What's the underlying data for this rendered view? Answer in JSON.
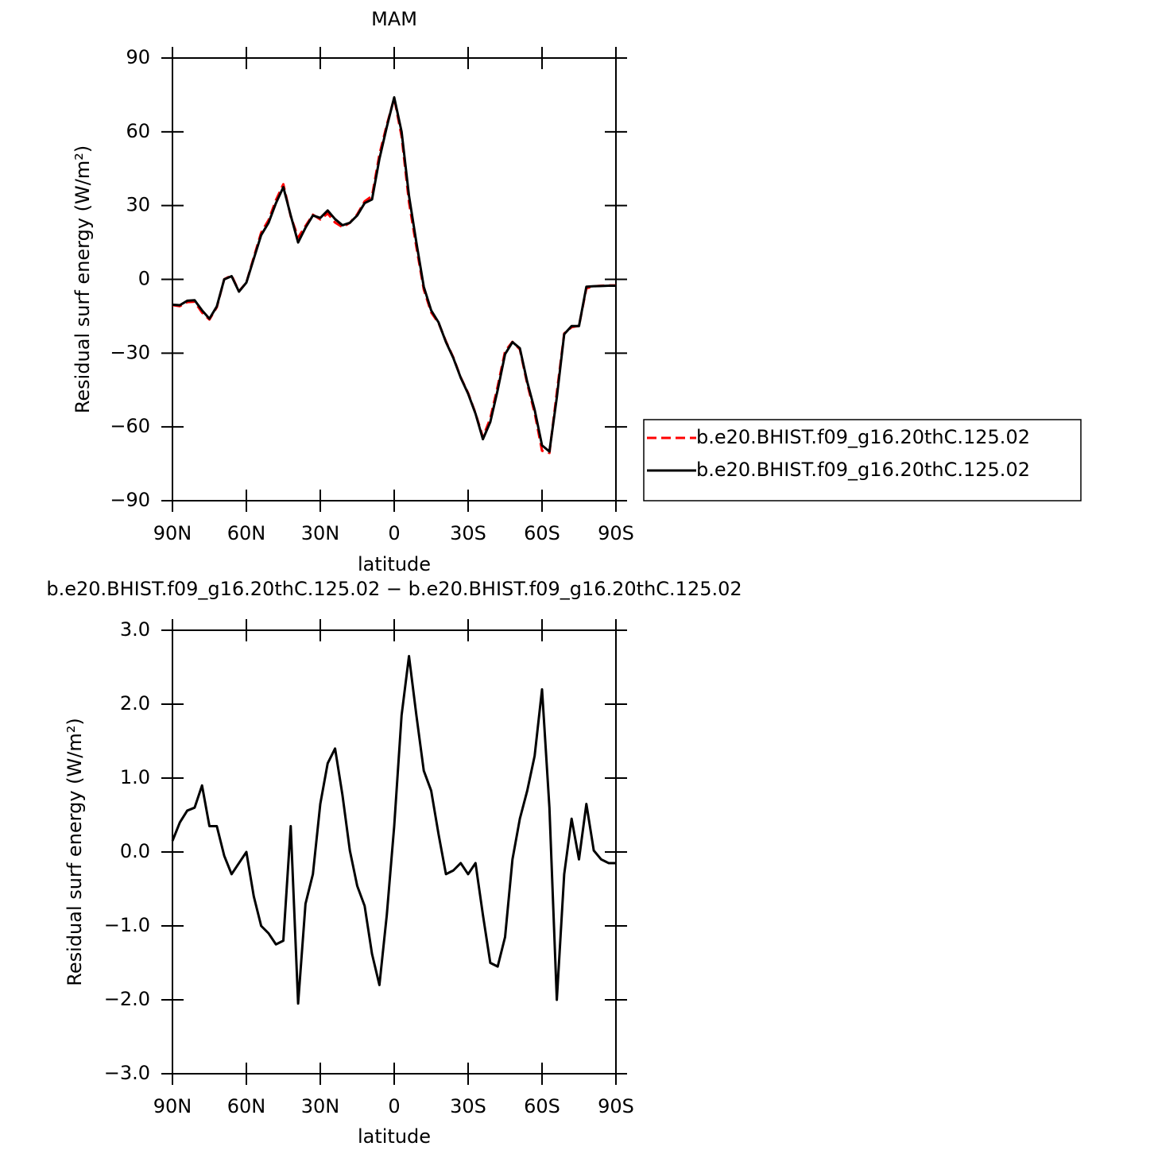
{
  "chart_data": [
    {
      "type": "line",
      "title": "MAM",
      "xlabel": "latitude",
      "ylabel": "Residual surf energy (W/m²)",
      "x": [
        90,
        87,
        84,
        81,
        78,
        75,
        72,
        69,
        66,
        63,
        60,
        57,
        54,
        51,
        48,
        45,
        42,
        39,
        36,
        33,
        30,
        27,
        24,
        21,
        18,
        15,
        12,
        9,
        6,
        3,
        0,
        -3,
        -6,
        -9,
        -12,
        -15,
        -18,
        -21,
        -24,
        -27,
        -30,
        -33,
        -36,
        -39,
        -42,
        -45,
        -48,
        -51,
        -54,
        -57,
        -60,
        -63,
        -66,
        -69,
        -72,
        -75,
        -78,
        -81,
        -84,
        -87,
        -90
      ],
      "series": [
        {
          "name": "b.e20.BHIST.f09_g16.20thC.125.02",
          "color": "#ff0000",
          "style": "dashed",
          "values": [
            -10.45,
            -10.9,
            -9.26,
            -9.1,
            -13.5,
            -16.35,
            -11.35,
            0.05,
            1.6,
            -4.85,
            -1.3,
            9.0,
            19.0,
            24.1,
            32.25,
            38.7,
            25.65,
            17.05,
            21.7,
            26.3,
            24.35,
            26.8,
            23.1,
            21.23,
            22.98,
            26.46,
            31.73,
            33.88,
            50.8,
            62.85,
            73.65,
            58.15,
            31.35,
            13.15,
            -4.1,
            -13.43,
            -17.74,
            -25.2,
            -31.75,
            -39.85,
            -46.2,
            -54.45,
            -64.15,
            -56.5,
            -43.45,
            -29.25,
            -25.4,
            -28.45,
            -42.53,
            -54.3,
            -69.7,
            -70.6,
            -46,
            -22,
            -19.45,
            -18.9,
            -3.65,
            -2.82,
            -2.6,
            -2.45,
            -2.45
          ]
        },
        {
          "name": "b.e20.BHIST.f09_g16.20thC.125.02",
          "color": "#000000",
          "style": "solid",
          "values": [
            -10.3,
            -10.5,
            -8.7,
            -8.5,
            -12.6,
            -16,
            -11,
            0,
            1.3,
            -5,
            -1.3,
            8.4,
            18,
            23,
            31,
            37.5,
            26,
            15,
            21,
            26,
            25,
            28,
            24.5,
            22,
            23,
            26,
            31,
            32.5,
            49,
            62,
            74,
            60,
            34,
            15,
            -3,
            -12.6,
            -17.5,
            -25.5,
            -32,
            -40,
            -46.5,
            -54.6,
            -65,
            -58,
            -45,
            -30.4,
            -25.5,
            -28,
            -41.7,
            -53,
            -67.5,
            -70,
            -48,
            -22.3,
            -19,
            -19,
            -3,
            -2.8,
            -2.7,
            -2.6,
            -2.6
          ]
        }
      ],
      "xlim": [
        90,
        -90
      ],
      "xticks": [
        {
          "value": 90,
          "label": "90N"
        },
        {
          "value": 60,
          "label": "60N"
        },
        {
          "value": 30,
          "label": "30N"
        },
        0,
        {
          "value": -30,
          "label": "30S"
        },
        {
          "value": -60,
          "label": "60S"
        },
        {
          "value": -90,
          "label": "90S"
        }
      ],
      "ylim": [
        -90,
        90
      ],
      "yticks": [
        {
          "value": -90,
          "label": "−90"
        },
        {
          "value": -60,
          "label": "−60"
        },
        {
          "value": -30,
          "label": "−30"
        },
        0,
        30,
        60,
        90
      ],
      "legend": "right"
    },
    {
      "type": "line",
      "title": "b.e20.BHIST.f09_g16.20thC.125.02 − b.e20.BHIST.f09_g16.20thC.125.02",
      "xlabel": "latitude",
      "ylabel": "Residual surf energy (W/m²)",
      "x": [
        90,
        87,
        84,
        81,
        78,
        75,
        72,
        69,
        66,
        63,
        60,
        57,
        54,
        51,
        48,
        45,
        42,
        39,
        36,
        33,
        30,
        27,
        24,
        21,
        18,
        15,
        12,
        9,
        6,
        3,
        0,
        -3,
        -6,
        -9,
        -12,
        -15,
        -18,
        -21,
        -24,
        -27,
        -30,
        -33,
        -36,
        -39,
        -42,
        -45,
        -48,
        -51,
        -54,
        -57,
        -60,
        -63,
        -66,
        -69,
        -72,
        -75,
        -78,
        -81,
        -84,
        -87,
        -90
      ],
      "values": [
        0.15,
        0.4,
        0.56,
        0.6,
        0.9,
        0.35,
        0.35,
        -0.05,
        -0.3,
        -0.15,
        0,
        -0.6,
        -1.0,
        -1.1,
        -1.25,
        -1.2,
        0.35,
        -2.05,
        -0.7,
        -0.3,
        0.65,
        1.2,
        1.4,
        0.77,
        0.02,
        -0.46,
        -0.73,
        -1.38,
        -1.8,
        -0.85,
        0.35,
        1.85,
        2.65,
        1.85,
        1.1,
        0.83,
        0.24,
        -0.3,
        -0.25,
        -0.15,
        -0.3,
        -0.15,
        -0.85,
        -1.5,
        -1.55,
        -1.15,
        -0.1,
        0.45,
        0.83,
        1.3,
        2.2,
        0.6,
        -2.0,
        -0.3,
        0.45,
        -0.1,
        0.65,
        0.02,
        -0.1,
        -0.15,
        -0.15
      ],
      "color": "#000000",
      "xlim": [
        90,
        -90
      ],
      "xticks": [
        {
          "value": 90,
          "label": "90N"
        },
        {
          "value": 60,
          "label": "60N"
        },
        {
          "value": 30,
          "label": "30N"
        },
        0,
        {
          "value": -30,
          "label": "30S"
        },
        {
          "value": -60,
          "label": "60S"
        },
        {
          "value": -90,
          "label": "90S"
        }
      ],
      "ylim": [
        -3,
        3
      ],
      "yticks": [
        {
          "value": -3,
          "label": "−3.0"
        },
        {
          "value": -2,
          "label": "−2.0"
        },
        {
          "value": -1,
          "label": "−1.0"
        },
        {
          "value": 0,
          "label": "0.0"
        },
        {
          "value": 1,
          "label": "1.0"
        },
        {
          "value": 2,
          "label": "2.0"
        },
        {
          "value": 3,
          "label": "3.0"
        }
      ]
    }
  ]
}
